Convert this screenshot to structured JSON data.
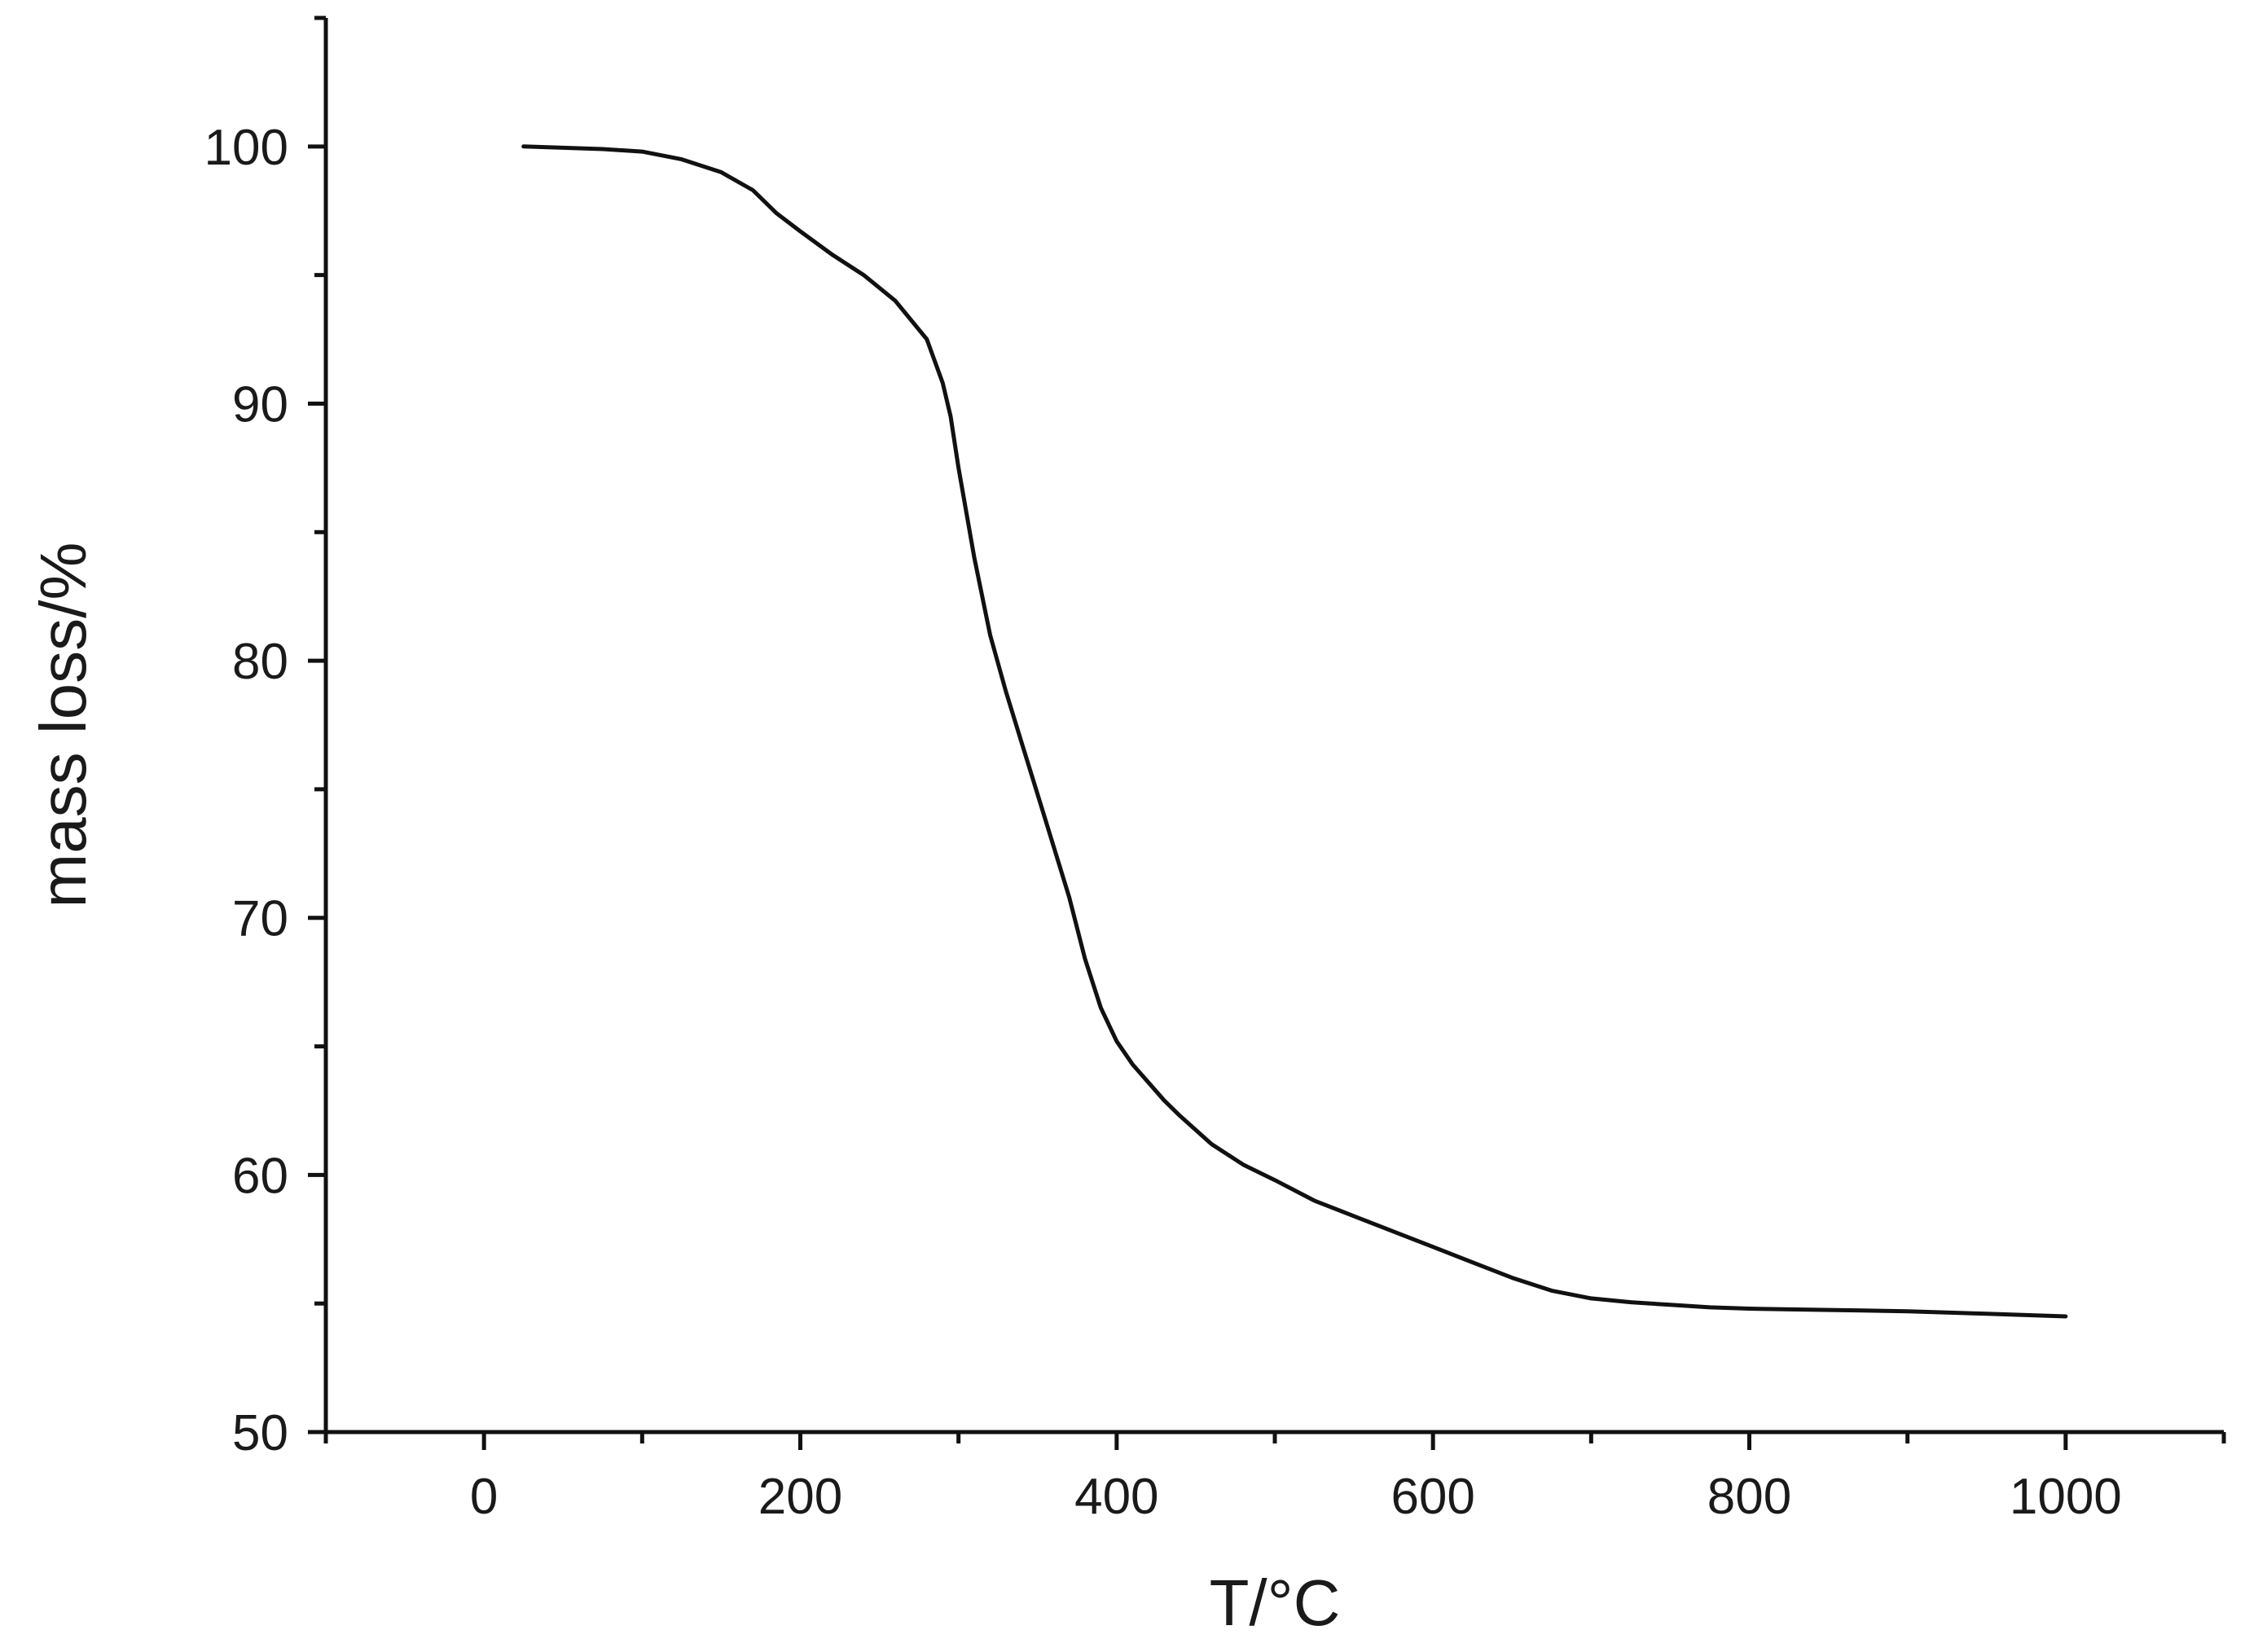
{
  "chart_data": {
    "type": "line",
    "title": "",
    "xlabel": "T/°C",
    "ylabel": "mass loss/%",
    "xlim": [
      -100,
      1100
    ],
    "ylim": [
      50,
      105
    ],
    "x_ticks": [
      0,
      200,
      400,
      600,
      800,
      1000
    ],
    "x_tick_labels": [
      "0",
      "200",
      "400",
      "600",
      "800",
      "1000"
    ],
    "x_minor_ticks": [
      -100,
      100,
      300,
      500,
      700,
      900,
      1100
    ],
    "y_ticks": [
      50,
      60,
      70,
      80,
      90,
      100
    ],
    "y_tick_labels": [
      "50",
      "60",
      "70",
      "80",
      "90",
      "100"
    ],
    "y_minor_ticks": [
      55,
      65,
      75,
      85,
      95,
      105
    ],
    "grid": false,
    "legend": "none",
    "series": [
      {
        "color": "#111111",
        "x": [
          25,
          50,
          75,
          100,
          125,
          150,
          170,
          185,
          200,
          220,
          240,
          260,
          280,
          290,
          295,
          300,
          310,
          320,
          330,
          340,
          350,
          360,
          370,
          380,
          390,
          400,
          410,
          420,
          430,
          440,
          460,
          480,
          500,
          525,
          550,
          575,
          600,
          625,
          650,
          675,
          700,
          725,
          750,
          775,
          800,
          850,
          900,
          950,
          1000
        ],
        "y": [
          100.0,
          99.95,
          99.9,
          99.8,
          99.5,
          99.0,
          98.3,
          97.4,
          96.7,
          95.8,
          95.0,
          94.0,
          92.5,
          90.8,
          89.5,
          87.5,
          84.0,
          81.0,
          78.8,
          76.8,
          74.8,
          72.8,
          70.8,
          68.4,
          66.5,
          65.2,
          64.3,
          63.6,
          62.9,
          62.3,
          61.2,
          60.4,
          59.8,
          59.0,
          58.4,
          57.8,
          57.2,
          56.6,
          56.0,
          55.5,
          55.2,
          55.05,
          54.95,
          54.85,
          54.8,
          54.75,
          54.7,
          54.6,
          54.5
        ]
      }
    ]
  }
}
